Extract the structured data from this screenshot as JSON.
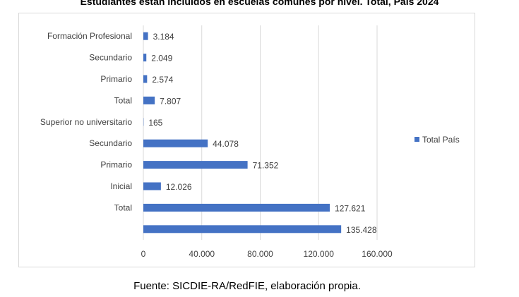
{
  "title": "Estudiantes están incluidos en escuelas comunes por nivel. Total, País 2024",
  "footer": "Fuente: SICDIE-RA/RedFIE, elaboración propia.",
  "colors": {
    "bar": "#4472C4",
    "grid": "#d9d9d9",
    "text": "#404040"
  },
  "chart_data": {
    "type": "bar",
    "orientation": "horizontal",
    "categories": [
      "Formación Profesional",
      "Secundario",
      "Primario",
      "Total",
      "Superior no universitario",
      "Secundario",
      "Primario",
      "Inicial",
      "Total",
      ""
    ],
    "series": [
      {
        "name": "Total País",
        "values": [
          3184,
          2049,
          2574,
          7807,
          165,
          44078,
          71352,
          12026,
          127621,
          135428
        ]
      }
    ],
    "value_labels": [
      "3.184",
      "2.049",
      "2.574",
      "7.807",
      "165",
      "44.078",
      "71.352",
      "12.026",
      "127.621",
      "135.428"
    ],
    "xlim": [
      0,
      160000
    ],
    "xticks": [
      0,
      40000,
      80000,
      120000,
      160000
    ],
    "xtick_labels": [
      "0",
      "40.000",
      "80.000",
      "120.000",
      "160.000"
    ],
    "grid": true,
    "legend": "right"
  }
}
